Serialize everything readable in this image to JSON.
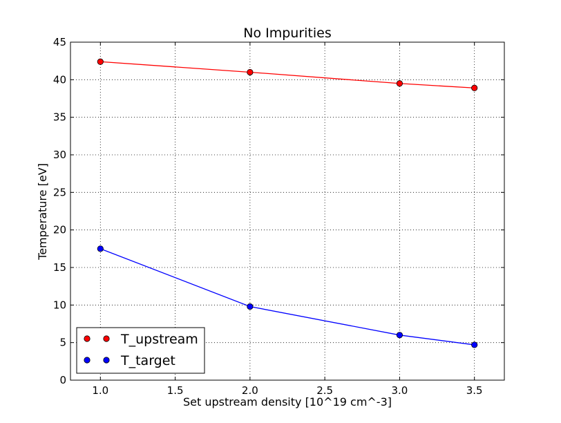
{
  "chart_data": {
    "type": "line",
    "title": "No Impurities",
    "xlabel": "Set upstream density [10^19 cm^-3]",
    "ylabel": "Temperature [eV]",
    "xlim": [
      0.8,
      3.7
    ],
    "ylim": [
      0,
      45
    ],
    "x_ticks": [
      "1.0",
      "1.5",
      "2.0",
      "2.5",
      "3.0",
      "3.5"
    ],
    "y_ticks": [
      "0",
      "5",
      "10",
      "15",
      "20",
      "25",
      "30",
      "35",
      "40",
      "45"
    ],
    "grid": true,
    "legend_position": "lower-left",
    "x": [
      1.0,
      2.0,
      3.0,
      3.5
    ],
    "series": [
      {
        "name": "T_upstream",
        "color": "#ff0000",
        "values": [
          42.4,
          41.0,
          39.5,
          38.9
        ]
      },
      {
        "name": "T_target",
        "color": "#0000ff",
        "values": [
          17.5,
          9.8,
          6.0,
          4.7
        ]
      }
    ]
  }
}
